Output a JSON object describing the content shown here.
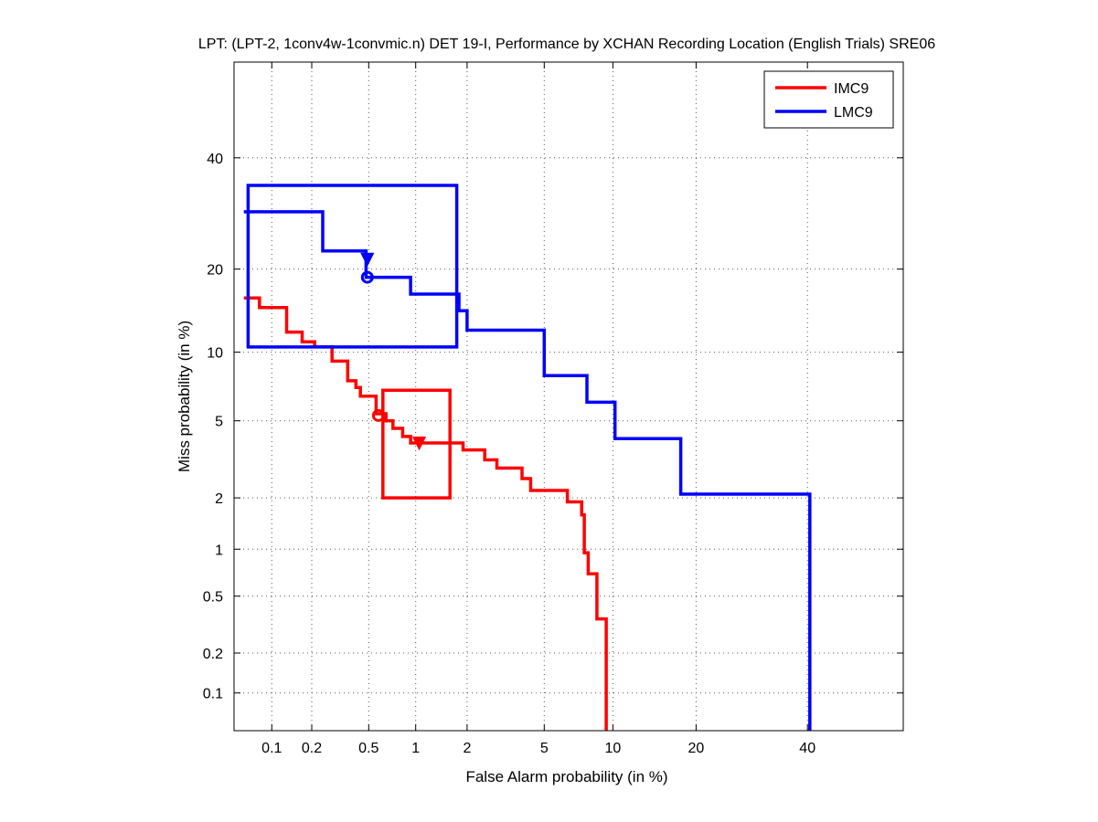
{
  "chart_data": {
    "type": "line",
    "title": "LPT: (LPT-2, 1conv4w-1convmic.n) DET 19-I,  Performance by XCHAN Recording Location (English Trials) SRE06",
    "xlabel": "False Alarm probability (in %)",
    "ylabel": "Miss probability (in %)",
    "x_scale": "probit",
    "y_scale": "probit",
    "xlim": [
      0.05,
      60
    ],
    "ylim": [
      0.05,
      60
    ],
    "x_ticks": [
      0.1,
      0.2,
      0.5,
      1,
      2,
      5,
      10,
      20,
      40
    ],
    "x_tick_labels": [
      "0.1",
      "0.2",
      "0.5",
      "1",
      "2",
      "5",
      "10",
      "20",
      "40"
    ],
    "y_ticks": [
      0.1,
      0.2,
      0.5,
      1,
      2,
      5,
      10,
      20,
      40
    ],
    "y_tick_labels": [
      "0.1",
      "0.2",
      "0.5",
      "1",
      "2",
      "5",
      "10",
      "20",
      "40"
    ],
    "grid": true,
    "legend_position": "top-right",
    "series": [
      {
        "name": "IMC9",
        "color": "#ff0000",
        "points": [
          [
            0.06,
            16
          ],
          [
            0.08,
            16
          ],
          [
            0.08,
            14.8
          ],
          [
            0.13,
            14.8
          ],
          [
            0.13,
            12
          ],
          [
            0.17,
            12
          ],
          [
            0.17,
            11
          ],
          [
            0.21,
            11
          ],
          [
            0.21,
            10.5
          ],
          [
            0.28,
            10.5
          ],
          [
            0.28,
            9.2
          ],
          [
            0.36,
            9.2
          ],
          [
            0.36,
            7.6
          ],
          [
            0.41,
            7.6
          ],
          [
            0.41,
            7.1
          ],
          [
            0.44,
            7.1
          ],
          [
            0.44,
            6.5
          ],
          [
            0.56,
            6.5
          ],
          [
            0.56,
            5.4
          ],
          [
            0.65,
            5.4
          ],
          [
            0.65,
            5.0
          ],
          [
            0.72,
            5.0
          ],
          [
            0.72,
            4.6
          ],
          [
            0.83,
            4.6
          ],
          [
            0.83,
            4.2
          ],
          [
            0.93,
            4.2
          ],
          [
            0.93,
            3.9
          ],
          [
            1.9,
            3.9
          ],
          [
            1.9,
            3.6
          ],
          [
            2.5,
            3.6
          ],
          [
            2.5,
            3.2
          ],
          [
            2.9,
            3.2
          ],
          [
            2.9,
            2.9
          ],
          [
            3.9,
            2.9
          ],
          [
            3.9,
            2.55
          ],
          [
            4.3,
            2.55
          ],
          [
            4.3,
            2.2
          ],
          [
            6.4,
            2.2
          ],
          [
            6.4,
            1.9
          ],
          [
            7.4,
            1.9
          ],
          [
            7.4,
            1.6
          ],
          [
            7.6,
            1.6
          ],
          [
            7.6,
            0.95
          ],
          [
            7.9,
            0.95
          ],
          [
            7.9,
            0.7
          ],
          [
            8.6,
            0.7
          ],
          [
            8.6,
            0.35
          ],
          [
            9.4,
            0.35
          ],
          [
            9.4,
            0.05
          ]
        ],
        "min_dcf_point": [
          0.58,
          5.3
        ],
        "actual_dcf_point": [
          1.05,
          3.9
        ],
        "confidence_box": {
          "x_min": 0.62,
          "x_max": 1.6,
          "y_min": 2.0,
          "y_max": 6.9
        }
      },
      {
        "name": "LMC9",
        "color": "#0000ff",
        "points": [
          [
            0.06,
            29.5
          ],
          [
            0.24,
            29.5
          ],
          [
            0.24,
            22.8
          ],
          [
            0.48,
            22.8
          ],
          [
            0.48,
            18.8
          ],
          [
            0.93,
            18.8
          ],
          [
            0.93,
            16.5
          ],
          [
            1.8,
            16.5
          ],
          [
            1.8,
            14.4
          ],
          [
            2.0,
            14.4
          ],
          [
            2.0,
            12.2
          ],
          [
            5.0,
            12.2
          ],
          [
            5.0,
            8.0
          ],
          [
            7.8,
            8.0
          ],
          [
            7.8,
            6.1
          ],
          [
            10.2,
            6.1
          ],
          [
            10.2,
            4.1
          ],
          [
            17.8,
            4.1
          ],
          [
            17.8,
            2.1
          ],
          [
            40.5,
            2.1
          ],
          [
            40.5,
            0.05
          ]
        ],
        "min_dcf_point": [
          0.49,
          18.8
        ],
        "actual_dcf_point": [
          0.49,
          21.5
        ],
        "confidence_box": {
          "x_min": 0.065,
          "x_max": 1.75,
          "y_min": 10.5,
          "y_max": 34.5
        }
      }
    ]
  }
}
